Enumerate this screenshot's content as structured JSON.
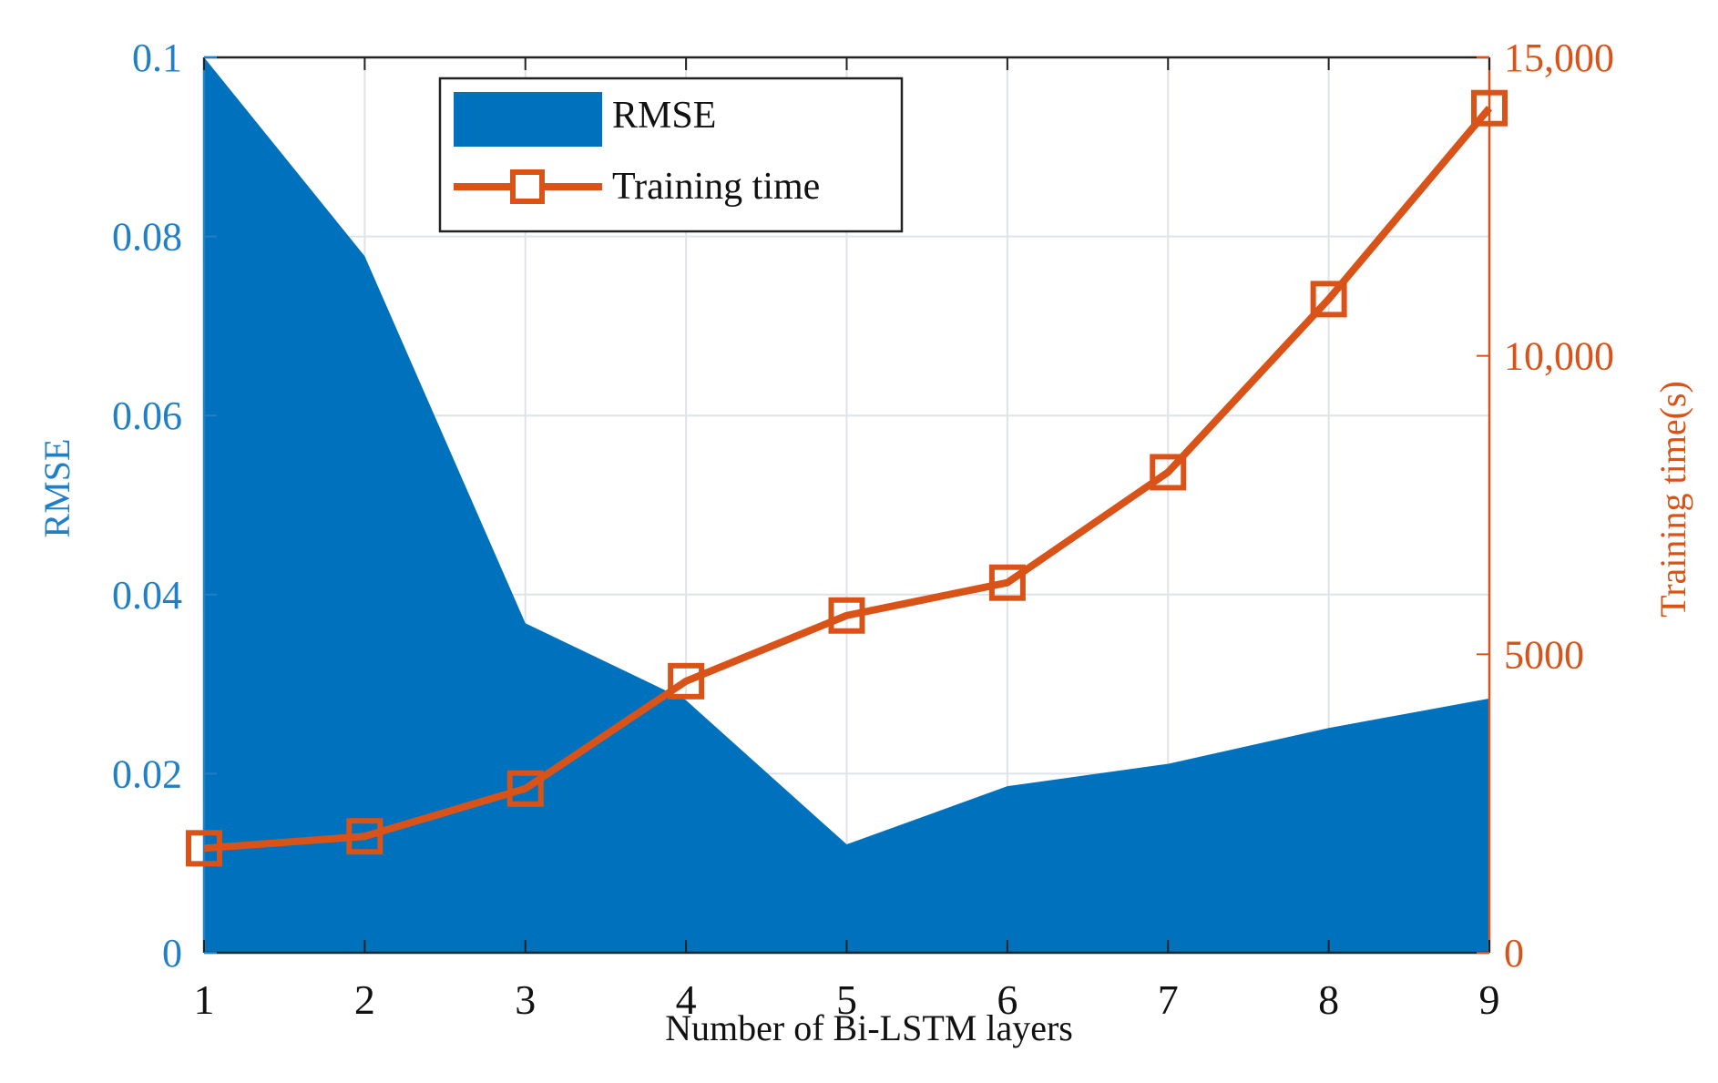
{
  "chart_data": {
    "type": "area",
    "xlabel": "Number of Bi-LSTM layers",
    "ylabel_left": "RMSE",
    "ylabel_right": "Training time(s)",
    "x": [
      1,
      2,
      3,
      4,
      5,
      6,
      7,
      8,
      9
    ],
    "xlim": [
      1,
      9
    ],
    "ylim_left": [
      0,
      0.1
    ],
    "ylim_right": [
      0,
      15000
    ],
    "yticks_left": [
      "0",
      "0.02",
      "0.04",
      "0.06",
      "0.08",
      "0.1"
    ],
    "yticks_left_values": [
      0,
      0.02,
      0.04,
      0.06,
      0.08,
      0.1
    ],
    "yticks_right": [
      "0",
      "5000",
      "10,000",
      "15,000"
    ],
    "yticks_right_values": [
      0,
      5000,
      10000,
      15000
    ],
    "grid": true,
    "legend_position": "top-center",
    "series": [
      {
        "name": "RMSE",
        "kind": "area",
        "axis": "left",
        "color": "#0072bd",
        "values": [
          0.1,
          0.0778,
          0.0368,
          0.0282,
          0.0121,
          0.0186,
          0.0211,
          0.0251,
          0.0284
        ]
      },
      {
        "name": "Training time",
        "kind": "line",
        "marker": "square",
        "axis": "right",
        "color": "#d95319",
        "values": [
          1750,
          1950,
          2750,
          4550,
          5650,
          6200,
          8050,
          10950,
          14150
        ]
      }
    ],
    "colors": {
      "left_axis": "#1f7fc7",
      "right_axis": "#d95319",
      "grid": "#dfe3e8",
      "frame": "#222222"
    }
  }
}
